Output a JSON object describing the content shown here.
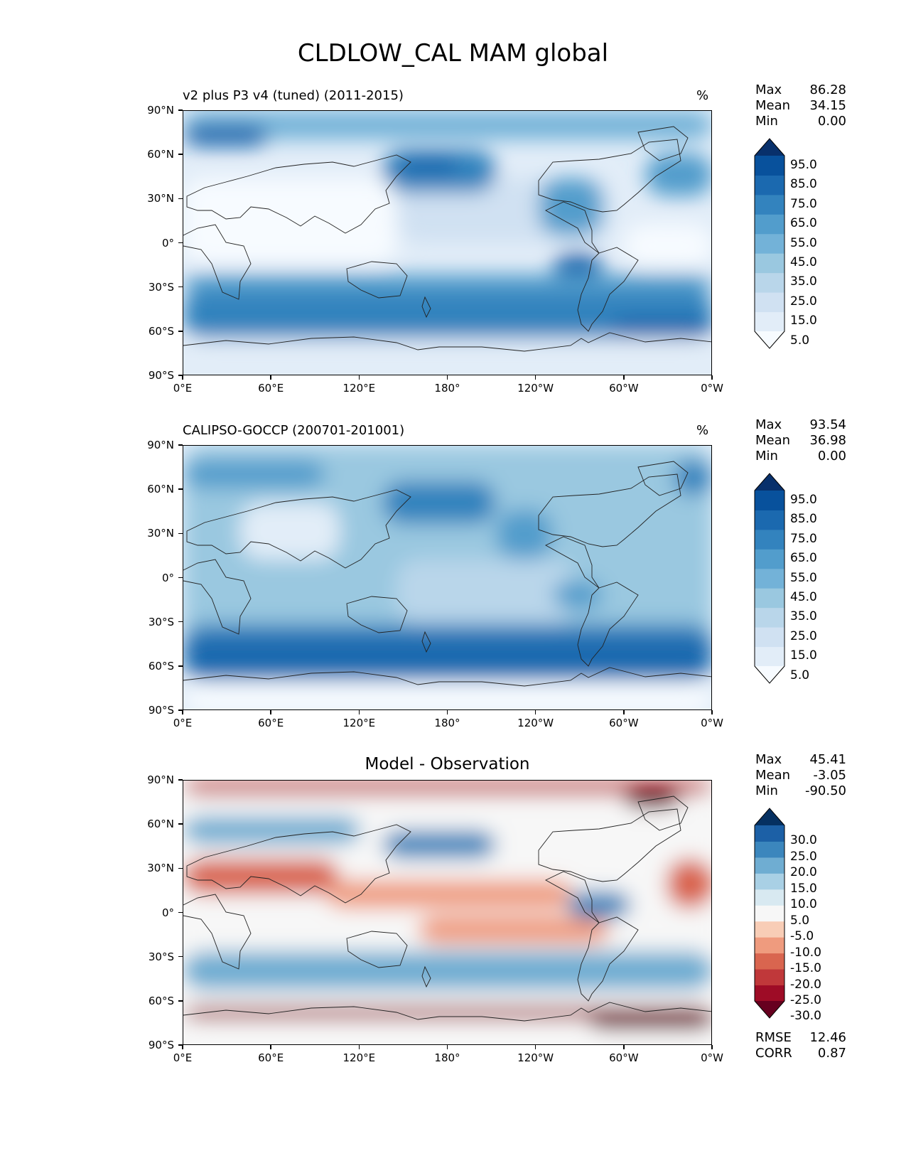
{
  "suptitle": "CLDLOW_CAL MAM global",
  "axes": {
    "lat_labels": [
      "90°N",
      "60°N",
      "30°N",
      "0°",
      "30°S",
      "60°S",
      "90°S"
    ],
    "lon_labels": [
      "0°E",
      "60°E",
      "120°E",
      "180°",
      "120°W",
      "60°W",
      "0°W"
    ]
  },
  "panels": [
    {
      "title_left": "v2 plus P3 v4 (tuned) (2011-2015)",
      "title_right": "%",
      "stats": [
        {
          "label": "Max",
          "value": "86.28"
        },
        {
          "label": "Mean",
          "value": "34.15"
        },
        {
          "label": "Min",
          "value": "0.00"
        }
      ],
      "colorbar": {
        "labels": [
          "95.0",
          "85.0",
          "75.0",
          "65.0",
          "55.0",
          "45.0",
          "35.0",
          "25.0",
          "15.0",
          "5.0"
        ],
        "colors": [
          "#f7fbff",
          "#e2edf8",
          "#d0e1f2",
          "#b9d6ea",
          "#9ac8e0",
          "#73b2d8",
          "#529dcc",
          "#3383be",
          "#1b69af",
          "#08519c",
          "#08306b"
        ]
      }
    },
    {
      "title_left": "CALIPSO-GOCCP (200701-201001)",
      "title_right": "%",
      "stats": [
        {
          "label": "Max",
          "value": "93.54"
        },
        {
          "label": "Mean",
          "value": "36.98"
        },
        {
          "label": "Min",
          "value": "0.00"
        }
      ],
      "colorbar": {
        "labels": [
          "95.0",
          "85.0",
          "75.0",
          "65.0",
          "55.0",
          "45.0",
          "35.0",
          "25.0",
          "15.0",
          "5.0"
        ],
        "colors": [
          "#f7fbff",
          "#e2edf8",
          "#d0e1f2",
          "#b9d6ea",
          "#9ac8e0",
          "#73b2d8",
          "#529dcc",
          "#3383be",
          "#1b69af",
          "#08519c",
          "#08306b"
        ]
      }
    },
    {
      "title_center": "Model - Observation",
      "stats": [
        {
          "label": "Max",
          "value": "45.41"
        },
        {
          "label": "Mean",
          "value": "-3.05"
        },
        {
          "label": "Min",
          "value": "-90.50"
        }
      ],
      "metrics": [
        {
          "label": "RMSE",
          "value": "12.46"
        },
        {
          "label": "CORR",
          "value": "0.87"
        }
      ],
      "colorbar": {
        "labels": [
          "30.0",
          "25.0",
          "20.0",
          "15.0",
          "10.0",
          "5.0",
          "-5.0",
          "-10.0",
          "-15.0",
          "-20.0",
          "-25.0",
          "-30.0"
        ],
        "colors": [
          "#67001f",
          "#9e0c26",
          "#c0383a",
          "#d9654f",
          "#ef9b7e",
          "#f8cdb6",
          "#f7f7f7",
          "#d8e9f1",
          "#a9d0e5",
          "#6fadd2",
          "#3b86bd",
          "#1c60a6",
          "#053061"
        ]
      }
    }
  ]
}
